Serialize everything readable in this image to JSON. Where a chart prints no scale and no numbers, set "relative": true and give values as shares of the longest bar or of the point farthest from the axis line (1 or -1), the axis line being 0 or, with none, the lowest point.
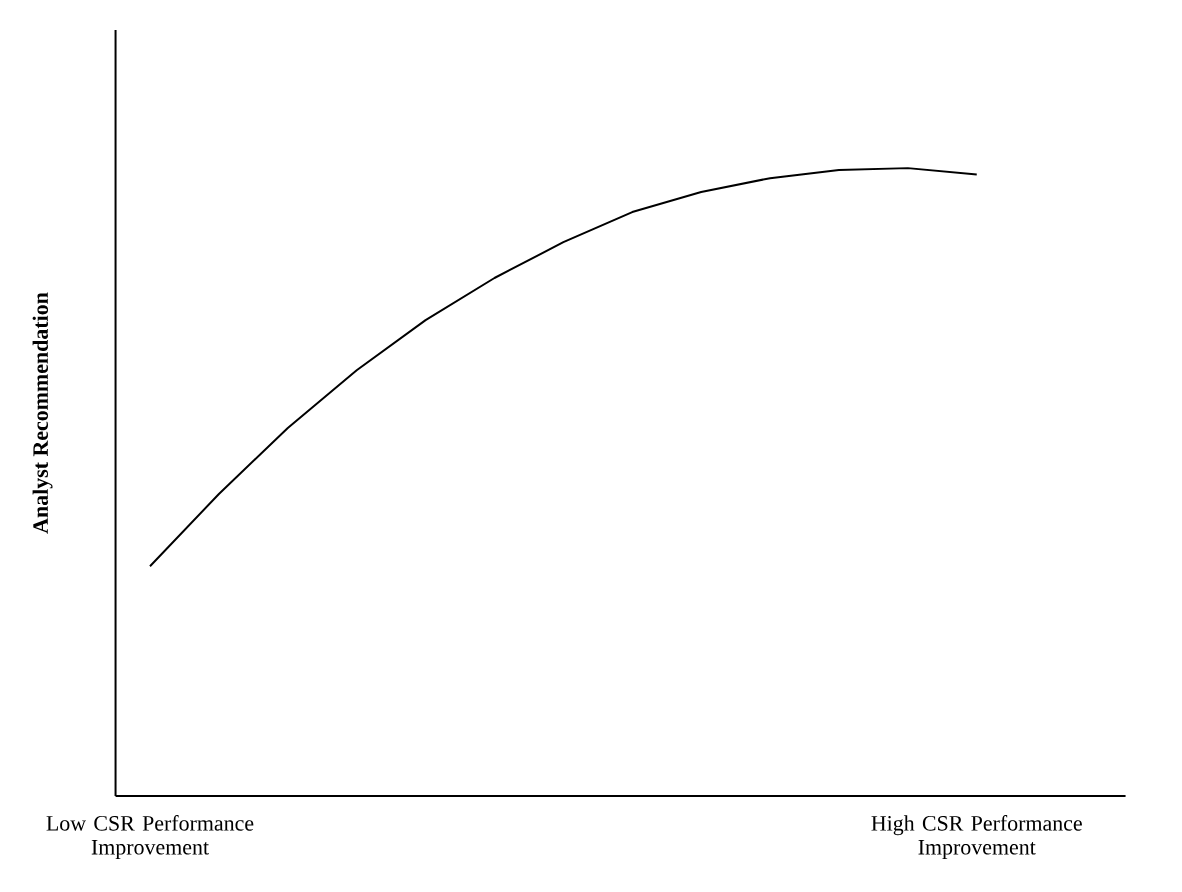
{
  "chart_data": {
    "type": "line",
    "ylabel": "Analyst Recommendation",
    "relative": true,
    "color": "#000000",
    "categories": [
      "Low CSR Performance Improvement",
      null,
      null,
      null,
      null,
      null,
      null,
      null,
      null,
      null,
      null,
      null,
      "High CSR Performance Improvement"
    ],
    "values": [
      0.366,
      0.481,
      0.586,
      0.678,
      0.758,
      0.825,
      0.882,
      0.93,
      0.962,
      0.984,
      0.997,
      1.0,
      0.99
    ]
  }
}
